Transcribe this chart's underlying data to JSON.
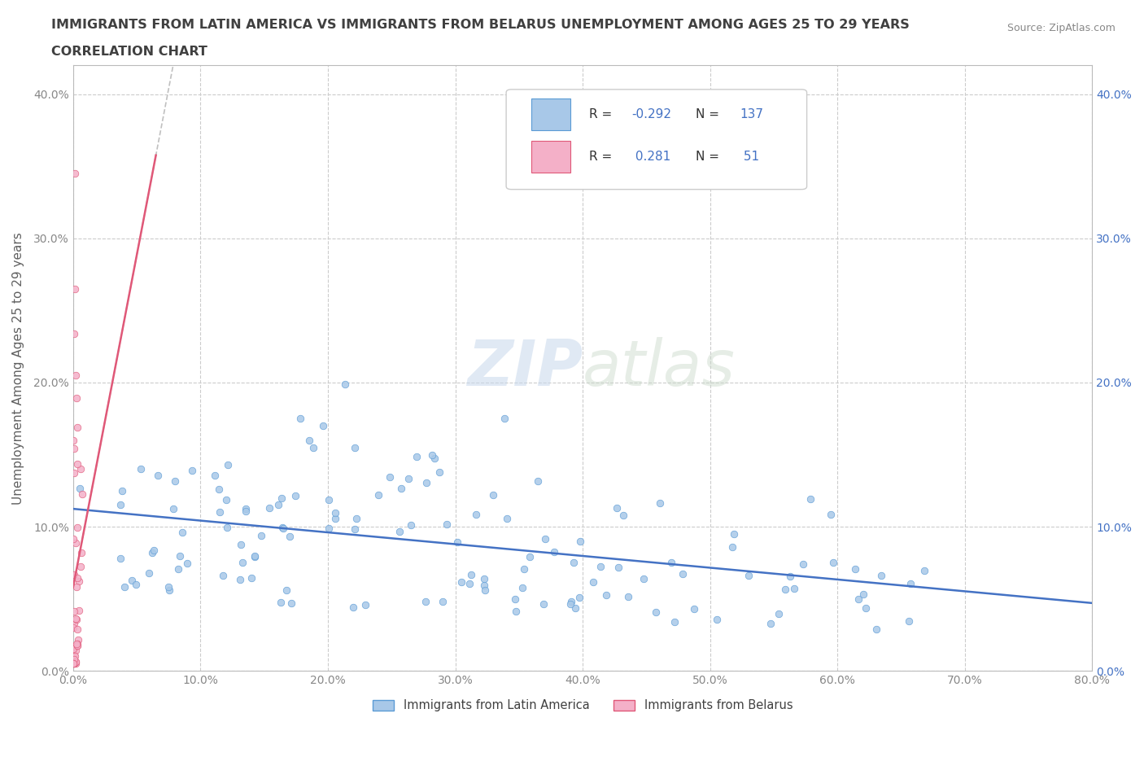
{
  "title_line1": "IMMIGRANTS FROM LATIN AMERICA VS IMMIGRANTS FROM BELARUS UNEMPLOYMENT AMONG AGES 25 TO 29 YEARS",
  "title_line2": "CORRELATION CHART",
  "source_text": "Source: ZipAtlas.com",
  "ylabel": "Unemployment Among Ages 25 to 29 years",
  "watermark_zip": "ZIP",
  "watermark_atlas": "atlas",
  "xlim": [
    0.0,
    0.8
  ],
  "ylim": [
    0.0,
    0.42
  ],
  "xticks": [
    0.0,
    0.1,
    0.2,
    0.3,
    0.4,
    0.5,
    0.6,
    0.7,
    0.8
  ],
  "xticklabels": [
    "0.0%",
    "10.0%",
    "20.0%",
    "30.0%",
    "40.0%",
    "50.0%",
    "60.0%",
    "70.0%",
    "80.0%"
  ],
  "yticks": [
    0.0,
    0.1,
    0.2,
    0.3,
    0.4
  ],
  "yticklabels_left": [
    "0.0%",
    "10.0%",
    "20.0%",
    "30.0%",
    "40.0%"
  ],
  "yticklabels_right": [
    "0.0%",
    "10.0%",
    "20.0%",
    "30.0%",
    "40.0%"
  ],
  "legend_labels": [
    "Immigrants from Latin America",
    "Immigrants from Belarus"
  ],
  "R_latin": -0.292,
  "N_latin": 137,
  "R_belarus": 0.281,
  "N_belarus": 51,
  "latin_color": "#a8c8e8",
  "latin_edge_color": "#5b9bd5",
  "latin_line_color": "#4472c4",
  "belarus_color": "#f4b0c8",
  "belarus_edge_color": "#e05878",
  "belarus_line_color": "#e05878",
  "belarus_dash_color": "#c0c0c0",
  "scatter_size": 38,
  "grid_color": "#cccccc",
  "bg_color": "#ffffff",
  "title_color": "#404040",
  "tick_label_color_left": "#404040",
  "tick_label_color_right": "#4472c4",
  "ylabel_color": "#606060",
  "source_color": "#888888"
}
